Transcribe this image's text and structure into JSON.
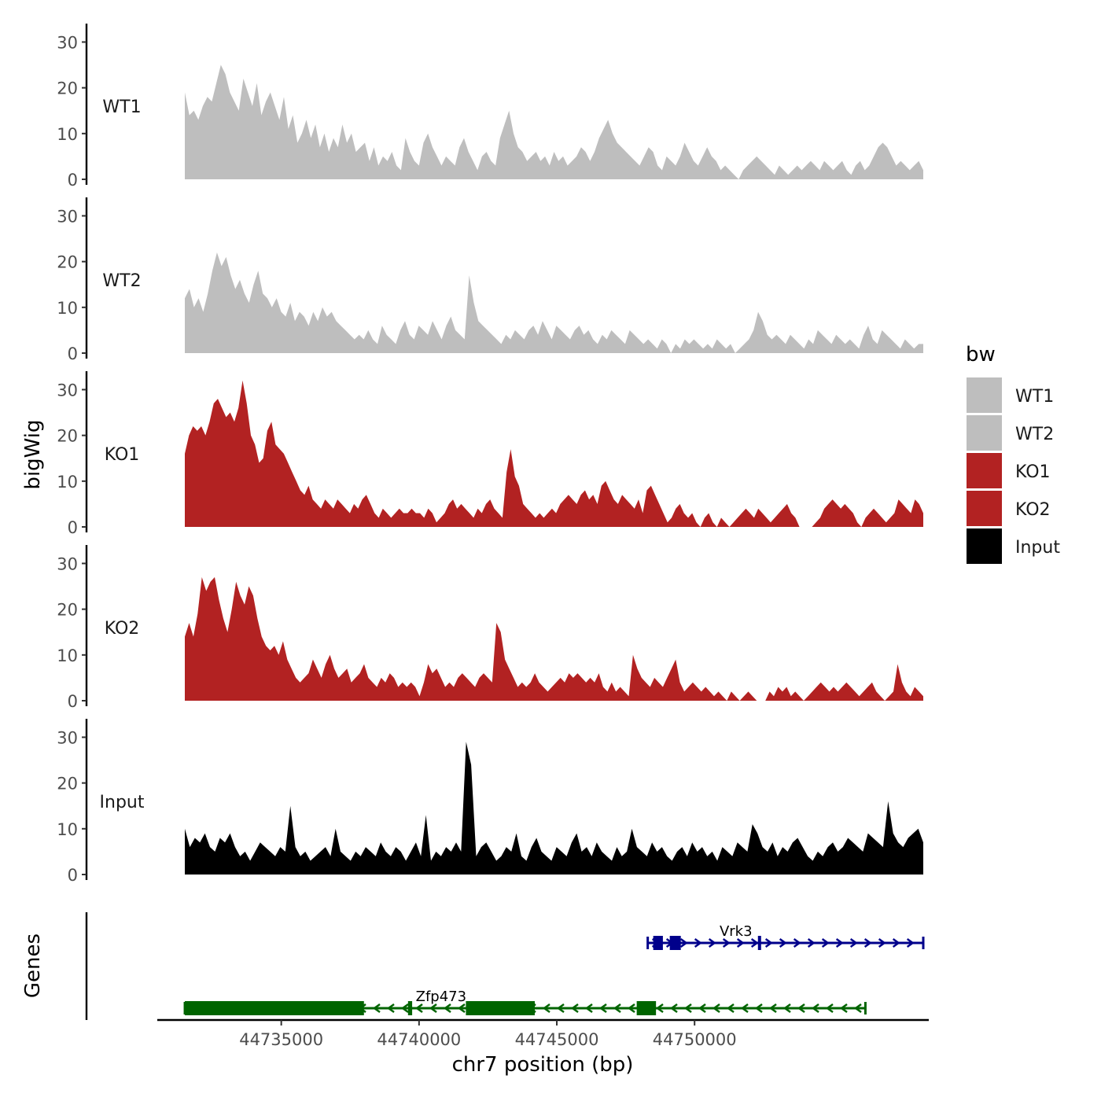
{
  "chart_data": {
    "type": "area",
    "y_axis_title": "bigWig",
    "x_axis_title": "chr7 position (bp)",
    "genes_axis_title": "Genes",
    "x_range": [
      44730500,
      44758500
    ],
    "x_ticks": [
      44735000,
      44740000,
      44745000,
      44750000
    ],
    "x_tick_labels": [
      "44735000",
      "44740000",
      "44745000",
      "44750000"
    ],
    "y_range": [
      0,
      33
    ],
    "y_ticks": [
      0,
      10,
      20,
      30
    ],
    "y_tick_labels": [
      "0",
      "10",
      "20",
      "30"
    ],
    "track_start": 44731500,
    "track_end": 44758300,
    "legend": {
      "title": "bw",
      "entries": [
        {
          "label": "WT1",
          "color": "#bebebe"
        },
        {
          "label": "WT2",
          "color": "#bebebe"
        },
        {
          "label": "KO1",
          "color": "#b22222"
        },
        {
          "label": "KO2",
          "color": "#b22222"
        },
        {
          "label": "Input",
          "color": "#000000"
        }
      ]
    },
    "tracks": [
      {
        "name": "WT1",
        "color": "#bebebe",
        "values": [
          19,
          14,
          15,
          13,
          16,
          18,
          17,
          21,
          25,
          23,
          19,
          17,
          15,
          22,
          19,
          16,
          21,
          14,
          17,
          19,
          16,
          13,
          18,
          11,
          14,
          8,
          10,
          13,
          9,
          12,
          7,
          10,
          6,
          9,
          7,
          12,
          8,
          10,
          6,
          7,
          8,
          4,
          7,
          3,
          5,
          4,
          6,
          3,
          2,
          9,
          6,
          4,
          3,
          8,
          10,
          7,
          5,
          3,
          5,
          4,
          3,
          7,
          9,
          6,
          4,
          2,
          5,
          6,
          4,
          3,
          9,
          12,
          15,
          10,
          7,
          6,
          4,
          5,
          6,
          4,
          5,
          3,
          6,
          4,
          5,
          3,
          4,
          5,
          7,
          6,
          4,
          6,
          9,
          11,
          13,
          10,
          8,
          7,
          6,
          5,
          4,
          3,
          5,
          7,
          6,
          3,
          2,
          5,
          4,
          3,
          5,
          8,
          6,
          4,
          3,
          5,
          7,
          5,
          4,
          2,
          3,
          2,
          1,
          0,
          2,
          3,
          4,
          5,
          4,
          3,
          2,
          1,
          3,
          2,
          1,
          2,
          3,
          2,
          3,
          4,
          3,
          2,
          4,
          3,
          2,
          3,
          4,
          2,
          1,
          3,
          4,
          2,
          3,
          5,
          7,
          8,
          7,
          5,
          3,
          4,
          3,
          2,
          3,
          4,
          2
        ]
      },
      {
        "name": "WT2",
        "color": "#bebebe",
        "values": [
          12,
          14,
          10,
          12,
          9,
          13,
          18,
          22,
          19,
          21,
          17,
          14,
          16,
          13,
          11,
          15,
          18,
          13,
          12,
          10,
          12,
          9,
          8,
          11,
          7,
          9,
          8,
          6,
          9,
          7,
          10,
          8,
          9,
          7,
          6,
          5,
          4,
          3,
          4,
          3,
          5,
          3,
          2,
          6,
          4,
          3,
          2,
          5,
          7,
          4,
          3,
          6,
          5,
          4,
          7,
          5,
          3,
          6,
          8,
          5,
          4,
          3,
          17,
          11,
          7,
          6,
          5,
          4,
          3,
          2,
          4,
          3,
          5,
          4,
          3,
          5,
          6,
          4,
          7,
          5,
          3,
          6,
          5,
          4,
          3,
          5,
          6,
          4,
          5,
          3,
          2,
          4,
          3,
          5,
          4,
          3,
          2,
          5,
          4,
          3,
          2,
          3,
          2,
          1,
          3,
          2,
          0,
          2,
          1,
          3,
          2,
          3,
          2,
          1,
          2,
          1,
          3,
          2,
          1,
          2,
          0,
          1,
          2,
          3,
          5,
          9,
          7,
          4,
          3,
          4,
          3,
          2,
          4,
          3,
          2,
          1,
          3,
          2,
          5,
          4,
          3,
          2,
          4,
          3,
          2,
          3,
          2,
          1,
          4,
          6,
          3,
          2,
          5,
          4,
          3,
          2,
          1,
          3,
          2,
          1,
          2,
          2
        ]
      },
      {
        "name": "KO1",
        "color": "#b22222",
        "values": [
          16,
          20,
          22,
          21,
          22,
          20,
          23,
          27,
          28,
          26,
          24,
          25,
          23,
          26,
          32,
          27,
          20,
          18,
          14,
          15,
          21,
          23,
          18,
          17,
          16,
          14,
          12,
          10,
          8,
          7,
          9,
          6,
          5,
          4,
          6,
          5,
          4,
          6,
          5,
          4,
          3,
          5,
          4,
          6,
          7,
          5,
          3,
          2,
          4,
          3,
          2,
          3,
          4,
          3,
          3,
          4,
          3,
          3,
          2,
          4,
          3,
          1,
          2,
          3,
          5,
          6,
          4,
          5,
          4,
          3,
          2,
          4,
          3,
          5,
          6,
          4,
          3,
          2,
          12,
          17,
          11,
          9,
          5,
          4,
          3,
          2,
          3,
          2,
          3,
          4,
          3,
          5,
          6,
          7,
          6,
          5,
          7,
          8,
          6,
          7,
          5,
          9,
          10,
          8,
          6,
          5,
          7,
          6,
          5,
          4,
          6,
          3,
          8,
          9,
          7,
          5,
          3,
          1,
          2,
          4,
          5,
          3,
          2,
          3,
          1,
          0,
          2,
          3,
          1,
          0,
          2,
          1,
          0,
          1,
          2,
          3,
          4,
          3,
          2,
          4,
          3,
          2,
          1,
          2,
          3,
          4,
          5,
          3,
          2,
          0,
          0,
          0,
          0,
          1,
          2,
          4,
          5,
          6,
          5,
          4,
          5,
          4,
          3,
          1,
          0,
          2,
          3,
          4,
          3,
          2,
          1,
          2,
          3,
          6,
          5,
          4,
          3,
          6,
          5,
          3
        ]
      },
      {
        "name": "KO2",
        "color": "#b22222",
        "values": [
          14,
          17,
          14,
          19,
          27,
          24,
          26,
          27,
          22,
          18,
          15,
          20,
          26,
          23,
          21,
          25,
          23,
          18,
          14,
          12,
          11,
          12,
          10,
          13,
          9,
          7,
          5,
          4,
          5,
          6,
          9,
          7,
          5,
          8,
          10,
          7,
          5,
          6,
          7,
          4,
          5,
          6,
          8,
          5,
          4,
          3,
          5,
          4,
          6,
          5,
          3,
          4,
          3,
          4,
          3,
          1,
          4,
          8,
          6,
          7,
          5,
          3,
          4,
          3,
          5,
          6,
          5,
          4,
          3,
          5,
          6,
          5,
          4,
          17,
          15,
          9,
          7,
          5,
          3,
          4,
          3,
          4,
          6,
          4,
          3,
          2,
          3,
          4,
          5,
          4,
          6,
          5,
          6,
          5,
          4,
          5,
          4,
          6,
          3,
          2,
          4,
          2,
          3,
          2,
          1,
          10,
          7,
          5,
          4,
          3,
          5,
          4,
          3,
          5,
          7,
          9,
          4,
          2,
          3,
          4,
          3,
          2,
          3,
          2,
          1,
          2,
          1,
          0,
          2,
          1,
          0,
          1,
          2,
          1,
          0,
          0,
          0,
          2,
          1,
          3,
          2,
          3,
          1,
          2,
          1,
          0,
          1,
          2,
          3,
          4,
          3,
          2,
          3,
          2,
          3,
          4,
          3,
          2,
          1,
          2,
          3,
          4,
          2,
          1,
          0,
          1,
          2,
          8,
          4,
          2,
          1,
          3,
          2,
          1
        ]
      },
      {
        "name": "Input",
        "color": "#000000",
        "values": [
          10,
          6,
          8,
          7,
          9,
          6,
          5,
          8,
          7,
          9,
          6,
          4,
          5,
          3,
          5,
          7,
          6,
          5,
          4,
          6,
          5,
          15,
          6,
          4,
          5,
          3,
          4,
          5,
          6,
          4,
          10,
          5,
          4,
          3,
          5,
          4,
          6,
          5,
          4,
          7,
          5,
          4,
          6,
          5,
          3,
          5,
          7,
          4,
          13,
          3,
          5,
          4,
          6,
          5,
          7,
          5,
          29,
          24,
          4,
          6,
          7,
          5,
          3,
          4,
          6,
          5,
          9,
          4,
          3,
          6,
          8,
          5,
          4,
          3,
          6,
          5,
          4,
          7,
          9,
          5,
          6,
          4,
          7,
          5,
          4,
          3,
          6,
          4,
          5,
          10,
          6,
          5,
          4,
          7,
          5,
          6,
          4,
          3,
          5,
          6,
          4,
          7,
          5,
          6,
          4,
          5,
          3,
          6,
          5,
          4,
          7,
          6,
          5,
          11,
          9,
          6,
          5,
          7,
          4,
          6,
          5,
          7,
          8,
          6,
          4,
          3,
          5,
          4,
          6,
          7,
          5,
          6,
          8,
          7,
          6,
          5,
          9,
          8,
          7,
          6,
          16,
          9,
          7,
          6,
          8,
          9,
          10,
          7
        ]
      }
    ],
    "genes": [
      {
        "name": "Zfp473",
        "color": "#006400",
        "strand": "-",
        "start": 44731500,
        "end": 44756200,
        "exons": [
          [
            44731500,
            44738000
          ],
          [
            44739600,
            44739750
          ],
          [
            44741700,
            44744200
          ],
          [
            44747900,
            44748600
          ]
        ]
      },
      {
        "name": "Vrk3",
        "color": "#00008b",
        "strand": "+",
        "start": 44748300,
        "end": 44758300,
        "exons": [
          [
            44748500,
            44748850
          ],
          [
            44749100,
            44749500
          ],
          [
            44752300,
            44752400
          ]
        ]
      }
    ]
  }
}
